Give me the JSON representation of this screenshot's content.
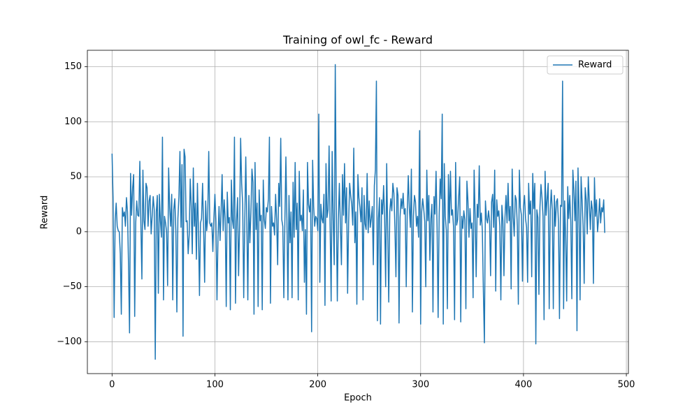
{
  "chart_data": {
    "type": "line",
    "title": "Training of owl_fc - Reward",
    "x_label": "Epoch",
    "y_label": "Reward",
    "xlim": [
      -24,
      502
    ],
    "ylim": [
      -129,
      165
    ],
    "xticks": [
      0,
      100,
      200,
      300,
      400,
      500
    ],
    "yticks": [
      {
        "value": -100,
        "label": "−100"
      },
      {
        "value": -50,
        "label": "−50"
      },
      0,
      50,
      100,
      150
    ],
    "grid": true,
    "legend": "upper right",
    "series": [
      {
        "name": "Reward",
        "color": "#1f77b4",
        "values": [
          71,
          30,
          -78,
          10,
          26,
          5,
          1,
          0,
          -20,
          -75,
          22,
          14,
          18,
          5,
          31,
          18,
          -30,
          -92,
          53,
          15,
          40,
          52,
          -77,
          8,
          28,
          15,
          14,
          64,
          8,
          -43,
          56,
          10,
          2,
          44,
          40,
          5,
          28,
          33,
          -2,
          14,
          32,
          20,
          -116,
          18,
          33,
          -56,
          34,
          10,
          -5,
          86,
          -62,
          14,
          8,
          0,
          -49,
          58,
          22,
          5,
          34,
          -62,
          20,
          30,
          1,
          -73,
          12,
          32,
          73,
          4,
          61,
          -95,
          75,
          68,
          9,
          10,
          -20,
          -3,
          48,
          23,
          -20,
          58,
          5,
          26,
          -25,
          44,
          1,
          -58,
          8,
          12,
          44,
          3,
          -46,
          28,
          1,
          12,
          73,
          8,
          5,
          8,
          -18,
          12,
          34,
          9,
          -62,
          -5,
          23,
          -8,
          18,
          52,
          1,
          29,
          12,
          -68,
          36,
          8,
          13,
          -71,
          47,
          11,
          3,
          86,
          -65,
          10,
          31,
          -40,
          5,
          85,
          44,
          25,
          -60,
          8,
          68,
          10,
          -62,
          33,
          -10,
          18,
          57,
          45,
          -75,
          63,
          2,
          26,
          -68,
          38,
          10,
          15,
          -71,
          47,
          11,
          3,
          22,
          18,
          30,
          86,
          -65,
          23,
          5,
          8,
          -3,
          34,
          11,
          -30,
          44,
          23,
          85,
          11,
          5,
          -60,
          8,
          68,
          10,
          -62,
          33,
          -10,
          18,
          -60,
          45,
          -5,
          63,
          2,
          26,
          -62,
          55,
          10,
          15,
          1,
          38,
          -46,
          2,
          -75,
          63,
          25,
          18,
          30,
          -91,
          65,
          23,
          5,
          14,
          12,
          1,
          107,
          -46,
          25,
          12,
          8,
          34,
          -67,
          62,
          13,
          20,
          78,
          5,
          -63,
          73,
          11,
          -30,
          152,
          23,
          -63,
          11,
          44,
          5,
          -30,
          52,
          15,
          62,
          8,
          40,
          -56,
          9,
          44,
          33,
          25,
          6,
          76,
          -10,
          18,
          -66,
          52,
          31,
          22,
          9,
          40,
          -62,
          33,
          7,
          2,
          53,
          -1,
          28,
          4,
          12,
          23,
          -30,
          42,
          56,
          137,
          -81,
          12,
          31,
          -84,
          29,
          16,
          42,
          13,
          -50,
          62,
          0,
          -64,
          18,
          30,
          19,
          44,
          35,
          4,
          -41,
          40,
          33,
          -83,
          13,
          30,
          21,
          35,
          16,
          21,
          -50,
          18,
          51,
          22,
          4,
          57,
          -73,
          14,
          33,
          27,
          5,
          14,
          -5,
          92,
          -84,
          18,
          30,
          21,
          9,
          -50,
          56,
          10,
          33,
          -26,
          12,
          25,
          -73,
          32,
          16,
          55,
          4,
          -78,
          14,
          48,
          30,
          107,
          -84,
          62,
          14,
          1,
          -70,
          52,
          8,
          55,
          15,
          20,
          4,
          -80,
          63,
          6,
          11,
          32,
          50,
          -82,
          14,
          3,
          19,
          11,
          -70,
          46,
          28,
          -5,
          21,
          3,
          8,
          -60,
          56,
          15,
          -41,
          25,
          13,
          60,
          6,
          17,
          1,
          -54,
          -101,
          28,
          12,
          8,
          19,
          10,
          -40,
          27,
          34,
          4,
          56,
          -54,
          29,
          14,
          19,
          5,
          -62,
          24,
          10,
          -40,
          13,
          33,
          8,
          44,
          10,
          23,
          -52,
          57,
          13,
          -4,
          33,
          29,
          5,
          -66,
          56,
          22,
          15,
          -45,
          23,
          33,
          12,
          4,
          -46,
          44,
          16,
          28,
          -41,
          53,
          21,
          44,
          -102,
          20,
          13,
          -57,
          22,
          43,
          31,
          14,
          -80,
          55,
          15,
          30,
          44,
          -70,
          19,
          38,
          20,
          -70,
          33,
          5,
          27,
          30,
          8,
          -79,
          24,
          23,
          137,
          -70,
          28,
          -5,
          -63,
          41,
          12,
          33,
          9,
          -61,
          56,
          38,
          10,
          46,
          -90,
          58,
          20,
          -62,
          50,
          28,
          5,
          -47,
          40,
          29,
          -2,
          50,
          27,
          2,
          28,
          20,
          -47,
          49,
          14,
          29,
          0,
          12,
          30,
          8,
          22,
          18,
          29,
          -1
        ]
      }
    ]
  }
}
